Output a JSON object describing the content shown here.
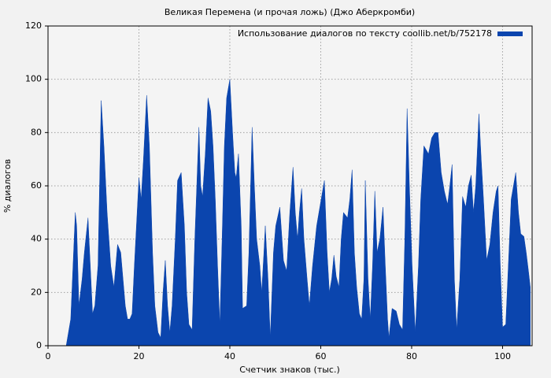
{
  "chart_data": {
    "type": "area",
    "title": "Великая Перемена (и прочая ложь) (Джо Аберкромби)",
    "xlabel": "Счетчик знаков (тыс.)",
    "ylabel": "% диалогов",
    "xlim": [
      0,
      106.5
    ],
    "ylim": [
      0,
      120
    ],
    "xticks": [
      0,
      20,
      40,
      60,
      80,
      100
    ],
    "yticks": [
      0,
      20,
      40,
      60,
      80,
      100,
      120
    ],
    "grid": true,
    "legend": "upper right",
    "series": [
      {
        "name": "Использование диалогов по тексту coollib.net/b/752178",
        "color": "#0b45ae",
        "x": [
          4,
          4.5,
          5,
          5.5,
          6,
          6.3,
          6.8,
          7.5,
          8,
          8.8,
          9.3,
          9.8,
          10.3,
          11,
          11.7,
          12.3,
          13,
          13.8,
          14.5,
          15.3,
          16,
          16.5,
          17,
          17.5,
          18,
          18.5,
          19,
          20,
          20.5,
          21,
          21.7,
          22.3,
          23,
          23.5,
          24.2,
          24.8,
          25.3,
          25.8,
          26.3,
          26.8,
          27.3,
          28,
          28.5,
          29.3,
          30,
          30.5,
          31,
          31.7,
          32.3,
          33.2,
          33.6,
          34,
          34.6,
          35.2,
          35.8,
          36.3,
          36.8,
          37.3,
          37.8,
          38.3,
          38.8,
          39.3,
          40,
          40.6,
          41.1,
          41.4,
          41.9,
          42.5,
          42.8,
          43.7,
          44.2,
          44.9,
          45.4,
          45.9,
          46.6,
          47,
          47.5,
          47.8,
          48.4,
          48.9,
          49.6,
          50.1,
          51,
          51.8,
          52.5,
          53.2,
          53.9,
          54.4,
          54.9,
          55.3,
          55.8,
          56.3,
          57,
          57.5,
          58.2,
          59.1,
          60.1,
          60.8,
          61.4,
          61.9,
          62.4,
          62.9,
          63.4,
          64,
          64.5,
          65,
          65.9,
          66.4,
          66.9,
          67.4,
          67.9,
          68.5,
          69,
          69.5,
          69.8,
          70.4,
          70.9,
          71.4,
          71.9,
          72.4,
          73,
          73.7,
          74.2,
          74.7,
          75,
          75.7,
          76.6,
          77.3,
          78,
          78.5,
          79,
          79.5,
          80.1,
          80.8,
          81.5,
          82,
          82.7,
          83.7,
          84.4,
          85.1,
          85.8,
          86.5,
          87.2,
          87.9,
          88.4,
          88.9,
          89.4,
          89.9,
          90.6,
          91.2,
          91.9,
          92.5,
          93.1,
          93.6,
          94.1,
          94.8,
          95.3,
          95.8,
          96.5,
          97.2,
          97.9,
          98.6,
          99,
          99.5,
          100,
          100.7,
          101.4,
          101.9,
          102.4,
          102.9,
          103.5,
          104,
          104.7,
          105.2,
          105.7,
          106.1
        ],
        "values": [
          0,
          5,
          10,
          30,
          50,
          45,
          15,
          25,
          35,
          48,
          30,
          12,
          15,
          30,
          92,
          75,
          50,
          30,
          22,
          38,
          35,
          25,
          15,
          10,
          10,
          12,
          30,
          63,
          55,
          70,
          94,
          75,
          35,
          15,
          5,
          3,
          20,
          32,
          15,
          5,
          15,
          40,
          62,
          65,
          45,
          20,
          8,
          6,
          40,
          82,
          60,
          56,
          72,
          93,
          88,
          75,
          55,
          30,
          8,
          40,
          75,
          93,
          100,
          80,
          65,
          63,
          72,
          45,
          14,
          15,
          35,
          82,
          60,
          40,
          30,
          20,
          35,
          45,
          25,
          3,
          35,
          45,
          52,
          32,
          28,
          50,
          67,
          50,
          40,
          50,
          59,
          40,
          25,
          15,
          30,
          45,
          55,
          62,
          35,
          20,
          25,
          34,
          26,
          22,
          40,
          50,
          48,
          55,
          66,
          35,
          22,
          12,
          10,
          25,
          62,
          25,
          10,
          30,
          58,
          35,
          40,
          52,
          30,
          10,
          3,
          14,
          13,
          8,
          6,
          40,
          89,
          60,
          30,
          5,
          30,
          55,
          75,
          72,
          78,
          80,
          80,
          65,
          58,
          53,
          60,
          68,
          25,
          6,
          25,
          56,
          52,
          60,
          64,
          50,
          60,
          87,
          70,
          55,
          32,
          38,
          50,
          58,
          60,
          30,
          7,
          8,
          35,
          55,
          60,
          65,
          50,
          42,
          41,
          35,
          28,
          22
        ]
      }
    ]
  }
}
